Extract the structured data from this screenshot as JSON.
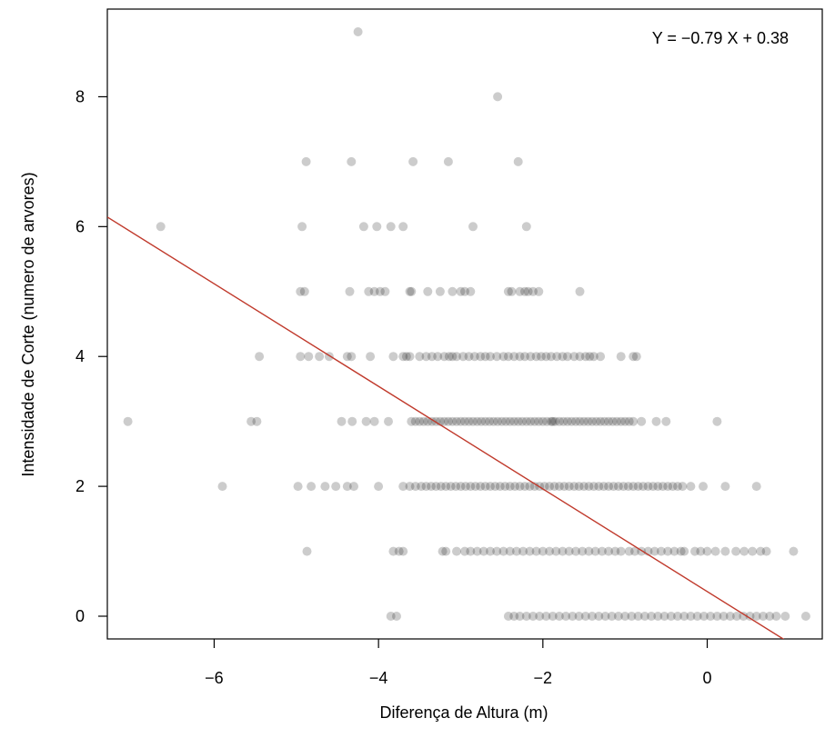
{
  "chart_data": {
    "type": "scatter",
    "title": "",
    "xlabel": "Diferença de Altura (m)",
    "ylabel": "Intensidade de Corte (numero de arvores)",
    "xlim": [
      -7.3,
      1.4
    ],
    "ylim": [
      -0.35,
      9.35
    ],
    "xticks": [
      -6,
      -4,
      -2,
      0
    ],
    "xtick_labels": [
      "−6",
      "−4",
      "−2",
      "0"
    ],
    "yticks": [
      0,
      2,
      4,
      6,
      8
    ],
    "ytick_labels": [
      "0",
      "2",
      "4",
      "6",
      "8"
    ],
    "grid": false,
    "legend": "none",
    "annotation": "Y = −0.79 X + 0.38",
    "point_color": "#000000",
    "point_alpha": 0.2,
    "line_color": "#c0392b",
    "regression": {
      "slope": -0.79,
      "intercept": 0.38,
      "x_range": [
        -7.3,
        0.98
      ]
    },
    "series": [
      {
        "y": 9,
        "x": [
          -4.25
        ]
      },
      {
        "y": 8,
        "x": [
          -2.55
        ]
      },
      {
        "y": 7,
        "x": [
          -4.88,
          -4.33,
          -3.58,
          -3.15,
          -2.3
        ]
      },
      {
        "y": 6,
        "x": [
          -6.65,
          -4.93,
          -4.18,
          -4.02,
          -3.85,
          -3.7,
          -2.85,
          -2.2
        ]
      },
      {
        "y": 5,
        "x": [
          -4.95,
          -4.9,
          -4.35,
          -4.12,
          -4.05,
          -3.98,
          -3.92,
          -3.62,
          -3.6,
          -3.4,
          -3.25,
          -3.1,
          -3.0,
          -2.95,
          -2.88,
          -2.42,
          -2.38,
          -2.28,
          -2.22,
          -2.18,
          -2.12,
          -2.05,
          -1.55
        ]
      },
      {
        "y": 4,
        "x": [
          -4.95,
          -4.85,
          -4.72,
          -4.6,
          -4.38,
          -4.33,
          -4.1,
          -3.82,
          -3.7,
          -3.66,
          -3.62,
          -3.5,
          -3.42,
          -3.35,
          -3.28,
          -3.2,
          -3.14,
          -3.1,
          -3.05,
          -2.97,
          -2.9,
          -2.83,
          -2.76,
          -2.7,
          -2.64,
          -2.56,
          -2.48,
          -2.42,
          -2.35,
          -2.28,
          -2.22,
          -2.15,
          -2.08,
          -2.02,
          -1.96,
          -1.9,
          -1.83,
          -1.76,
          -1.7,
          -1.62,
          -1.55,
          -1.48,
          -1.43,
          -1.38,
          -1.3,
          -1.05,
          -0.9,
          -0.86,
          -5.45
        ]
      },
      {
        "y": 3,
        "x": [
          -7.05,
          -5.55,
          -5.48,
          -4.45,
          -4.32,
          -4.15,
          -4.05,
          -3.88,
          -3.6,
          -3.55,
          -3.5,
          -3.45,
          -3.4,
          -3.35,
          -3.3,
          -3.25,
          -3.2,
          -3.15,
          -3.1,
          -3.05,
          -3.0,
          -2.95,
          -2.9,
          -2.85,
          -2.8,
          -2.75,
          -2.7,
          -2.65,
          -2.6,
          -2.55,
          -2.5,
          -2.45,
          -2.4,
          -2.35,
          -2.3,
          -2.25,
          -2.2,
          -2.15,
          -2.1,
          -2.05,
          -2.0,
          -1.95,
          -1.9,
          -1.88,
          -1.85,
          -1.8,
          -1.75,
          -1.7,
          -1.65,
          -1.6,
          -1.55,
          -1.5,
          -1.45,
          -1.4,
          -1.35,
          -1.3,
          -1.25,
          -1.2,
          -1.15,
          -1.1,
          -1.05,
          -1.0,
          -0.95,
          -0.9,
          -0.8,
          -0.62,
          -0.5,
          0.12
        ]
      },
      {
        "y": 2,
        "x": [
          -5.9,
          -4.98,
          -4.82,
          -4.65,
          -4.52,
          -4.38,
          -4.3,
          -4.0,
          -3.7,
          -3.62,
          -3.55,
          -3.48,
          -3.42,
          -3.36,
          -3.3,
          -3.24,
          -3.18,
          -3.12,
          -3.06,
          -3.0,
          -2.94,
          -2.88,
          -2.82,
          -2.76,
          -2.7,
          -2.64,
          -2.58,
          -2.52,
          -2.46,
          -2.4,
          -2.34,
          -2.28,
          -2.22,
          -2.16,
          -2.1,
          -2.04,
          -1.98,
          -1.92,
          -1.86,
          -1.8,
          -1.74,
          -1.68,
          -1.62,
          -1.56,
          -1.5,
          -1.44,
          -1.38,
          -1.32,
          -1.26,
          -1.2,
          -1.14,
          -1.08,
          -1.02,
          -0.96,
          -0.9,
          -0.84,
          -0.78,
          -0.72,
          -0.66,
          -0.6,
          -0.54,
          -0.48,
          -0.42,
          -0.36,
          -0.3,
          -0.2,
          -0.05,
          0.22,
          0.6
        ]
      },
      {
        "y": 1,
        "x": [
          -4.87,
          -3.82,
          -3.75,
          -3.7,
          -3.22,
          -3.18,
          -3.05,
          -2.95,
          -2.88,
          -2.8,
          -2.72,
          -2.64,
          -2.56,
          -2.48,
          -2.4,
          -2.32,
          -2.24,
          -2.16,
          -2.08,
          -2.0,
          -1.92,
          -1.84,
          -1.76,
          -1.68,
          -1.6,
          -1.52,
          -1.44,
          -1.36,
          -1.28,
          -1.2,
          -1.12,
          -1.05,
          -0.95,
          -0.88,
          -0.8,
          -0.72,
          -0.64,
          -0.56,
          -0.48,
          -0.4,
          -0.32,
          -0.28,
          -0.15,
          -0.08,
          0.0,
          0.1,
          0.22,
          0.35,
          0.45,
          0.55,
          0.65,
          0.72,
          1.05
        ]
      },
      {
        "y": 0,
        "x": [
          -3.85,
          -3.78,
          -2.42,
          -2.35,
          -2.28,
          -2.2,
          -2.12,
          -2.04,
          -1.96,
          -1.88,
          -1.8,
          -1.72,
          -1.64,
          -1.56,
          -1.48,
          -1.4,
          -1.32,
          -1.24,
          -1.16,
          -1.08,
          -1.0,
          -0.92,
          -0.84,
          -0.76,
          -0.68,
          -0.6,
          -0.52,
          -0.44,
          -0.36,
          -0.28,
          -0.2,
          -0.12,
          -0.04,
          0.04,
          0.12,
          0.2,
          0.28,
          0.36,
          0.44,
          0.52,
          0.6,
          0.68,
          0.76,
          0.84,
          0.95,
          1.2
        ]
      }
    ]
  }
}
